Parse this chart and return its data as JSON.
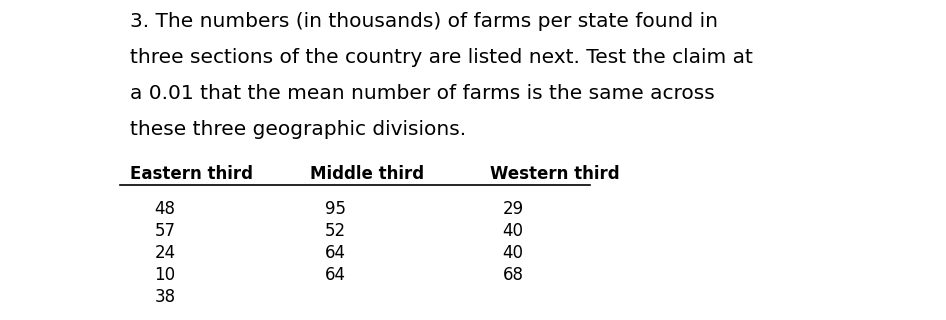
{
  "paragraph": "3. The numbers (in thousands) of farms per state found in\nthree sections of the country are listed next. Test the claim at\na 0.01 that the mean number of farms is the same across\nthese three geographic divisions.",
  "headers": [
    "Eastern third",
    "Middle third",
    "Western third"
  ],
  "columns": [
    [
      48,
      57,
      24,
      10,
      38
    ],
    [
      95,
      52,
      64,
      64
    ],
    [
      29,
      40,
      40,
      68
    ]
  ],
  "background_color": "#ffffff",
  "text_color": "#000000",
  "paragraph_fontsize": 14.5,
  "header_fontsize": 12.0,
  "data_fontsize": 12.0
}
